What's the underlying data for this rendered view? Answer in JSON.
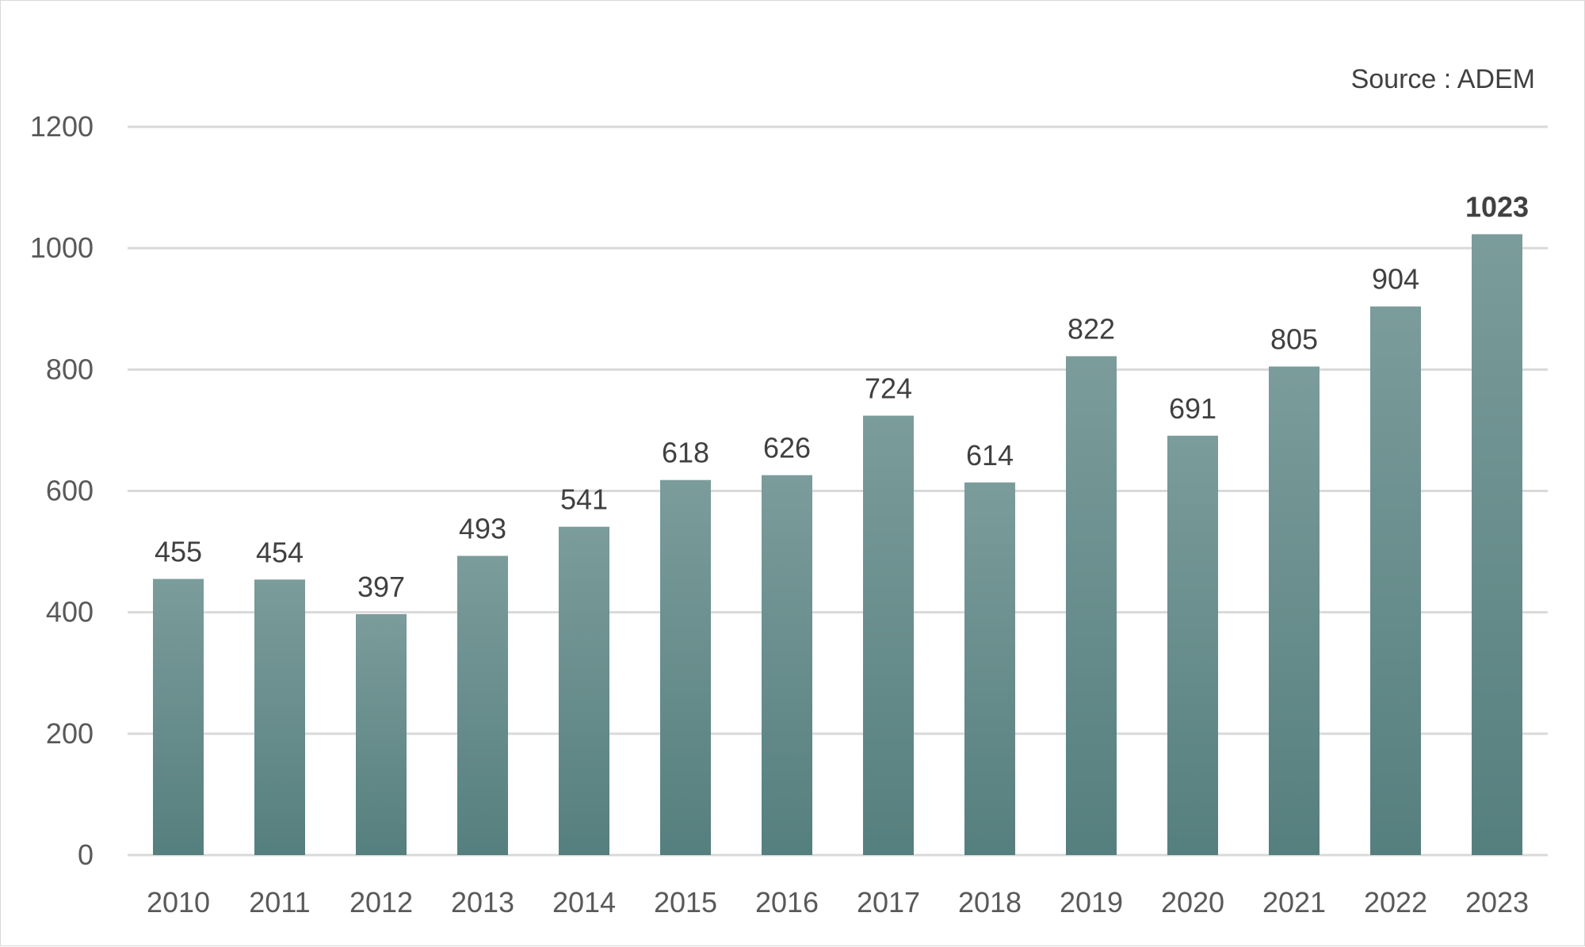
{
  "source_note": "Source : ADEM",
  "colors": {
    "bar_top": "#7b9c9b",
    "bar_bottom": "#557f7e",
    "grid": "#d9d9d9",
    "axis_text": "#595959",
    "label_text": "#404040"
  },
  "chart_data": {
    "type": "bar",
    "title": "",
    "xlabel": "",
    "ylabel": "",
    "categories": [
      "2010",
      "2011",
      "2012",
      "2013",
      "2014",
      "2015",
      "2016",
      "2017",
      "2018",
      "2019",
      "2020",
      "2021",
      "2022",
      "2023"
    ],
    "values": [
      455,
      454,
      397,
      493,
      541,
      618,
      626,
      724,
      614,
      822,
      691,
      805,
      904,
      1023
    ],
    "ylim": [
      0,
      1200
    ],
    "yticks": [
      0,
      200,
      400,
      600,
      800,
      1000,
      1200
    ],
    "grid": true,
    "legend": "none",
    "data_labels": true,
    "emphasized_label": "2023"
  }
}
